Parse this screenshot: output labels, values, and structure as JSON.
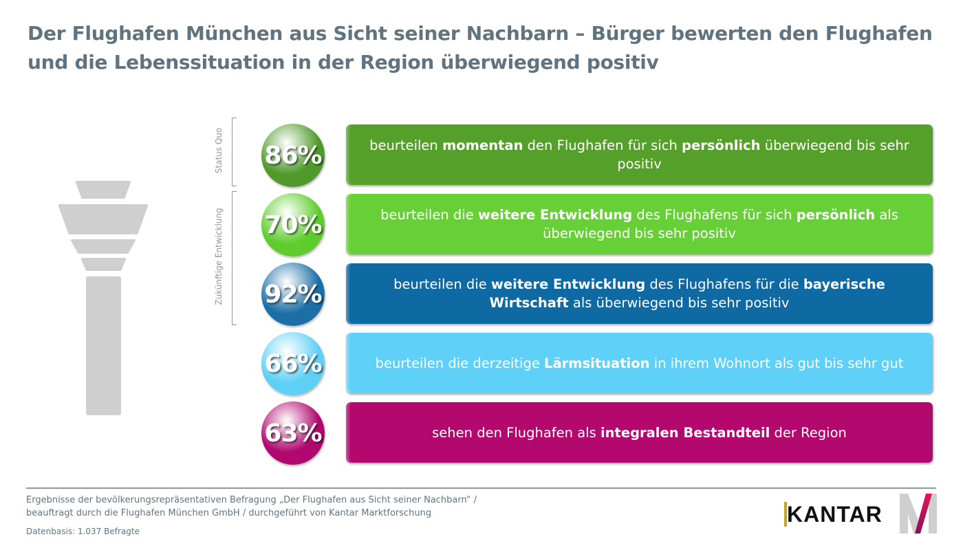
{
  "title": "Der Flughafen München aus Sicht seiner Nachbarn – Bürger bewerten den Flughafen und die Lebenssituation in der Region überwiegend positiv",
  "groups": {
    "status_quo": "Status Quo",
    "future": "Zukünftige Entwicklung"
  },
  "rows": [
    {
      "percent": "86%",
      "circle_color": "#4f9a2a",
      "bar_color": "#55a02a",
      "segments": [
        {
          "t": "beurteilen ",
          "b": false
        },
        {
          "t": "momentan",
          "b": true
        },
        {
          "t": " den Flughafen für sich ",
          "b": false
        },
        {
          "t": "persönlich",
          "b": true
        },
        {
          "t": " überwiegend bis sehr positiv",
          "b": false
        }
      ]
    },
    {
      "percent": "70%",
      "circle_color": "#5fcc2e",
      "bar_color": "#66d036",
      "segments": [
        {
          "t": "beurteilen die ",
          "b": false
        },
        {
          "t": "weitere Entwicklung",
          "b": true
        },
        {
          "t": " des Flughafens für sich ",
          "b": false
        },
        {
          "t": "persönlich",
          "b": true
        },
        {
          "t": " als überwiegend bis sehr positiv",
          "b": false
        }
      ]
    },
    {
      "percent": "92%",
      "circle_color": "#1c6fa6",
      "bar_color": "#0f69a3",
      "segments": [
        {
          "t": "beurteilen die ",
          "b": false
        },
        {
          "t": "weitere Entwicklung",
          "b": true
        },
        {
          "t": " des Flughafens für die ",
          "b": false
        },
        {
          "t": "bayerische Wirtschaft",
          "b": true
        },
        {
          "t": " als überwiegend bis sehr positiv",
          "b": false
        }
      ]
    },
    {
      "percent": "66%",
      "circle_color": "#5fd0f5",
      "bar_color": "#5fd0f7",
      "segments": [
        {
          "t": "beurteilen die derzeitige ",
          "b": false
        },
        {
          "t": "Lärmsituation",
          "b": true
        },
        {
          "t": " in ihrem Wohnort als gut bis sehr gut",
          "b": false
        }
      ]
    },
    {
      "percent": "63%",
      "circle_color": "#b0086e",
      "bar_color": "#b3096f",
      "segments": [
        {
          "t": "sehen den Flughafen als ",
          "b": false
        },
        {
          "t": "integralen Bestandteil",
          "b": true
        },
        {
          "t": " der Region",
          "b": false
        }
      ]
    }
  ],
  "footer": {
    "line1": "Ergebnisse der bevölkerungsrepräsentativen Befragung „Der Flughafen aus Sicht seiner Nachbarn“ /",
    "line2": "beauftragt durch die Flughafen München GmbH / durchgeführt von Kantar Marktforschung",
    "line3": "Datenbasis: 1.037 Befragte"
  },
  "logos": {
    "kantar": "KANTAR",
    "munich_airport": "M"
  }
}
